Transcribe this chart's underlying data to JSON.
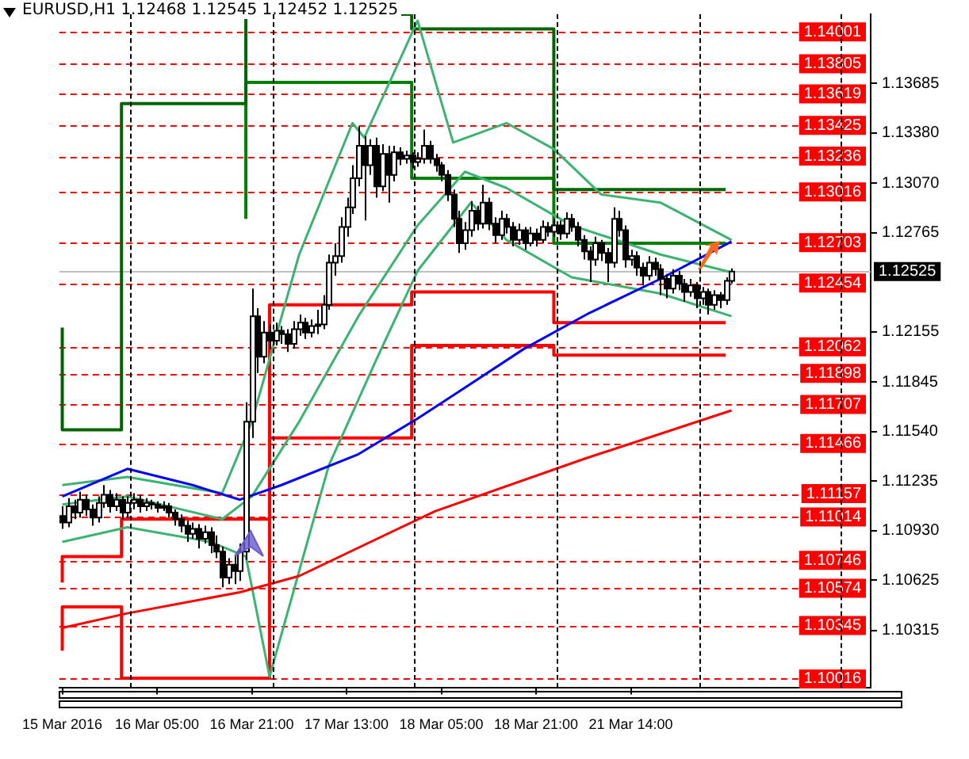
{
  "chart_data": {
    "type": "candlestick",
    "title": "EURUSD,H1 1.12468 1.12545 1.12452 1.12525",
    "categories": [
      "15 Mar 2016",
      null,
      null,
      null,
      null,
      null,
      null,
      null,
      null,
      null,
      null,
      null,
      null,
      null,
      null,
      null,
      "16 Mar 05:00",
      null,
      null,
      null,
      null,
      null,
      null,
      null,
      null,
      null,
      null,
      null,
      null,
      null,
      null,
      null,
      "16 Mar 21:00",
      null,
      null,
      null,
      null,
      null,
      null,
      null,
      null,
      null,
      null,
      null,
      null,
      null,
      null,
      null,
      "17 Mar 13:00",
      null,
      null,
      null,
      null,
      null,
      null,
      null,
      null,
      null,
      null,
      null,
      null,
      null,
      null,
      null,
      "18 Mar 05:00",
      null,
      null,
      null,
      null,
      null,
      null,
      null,
      null,
      null,
      null,
      null,
      null,
      null,
      null,
      null,
      "18 Mar 21:00",
      null,
      null,
      null,
      null,
      null,
      null,
      null,
      null,
      null,
      null,
      null,
      null,
      null,
      null,
      null,
      "21 Mar 14:00",
      null,
      null,
      null,
      null,
      null,
      null,
      null,
      null,
      null,
      null,
      null,
      null,
      null,
      null,
      null,
      null,
      null,
      null,
      null,
      null,
      null,
      null,
      null,
      null,
      null,
      null,
      null,
      null,
      null,
      null,
      null,
      null,
      null,
      null,
      null,
      null,
      null,
      null,
      null,
      null
    ],
    "ohlc": [
      [
        1.1102,
        1.1108,
        1.1094,
        1.1098
      ],
      [
        1.1098,
        1.1113,
        1.1095,
        1.1108
      ],
      [
        1.1108,
        1.1112,
        1.11,
        1.1104
      ],
      [
        1.1104,
        1.1117,
        1.1101,
        1.1112
      ],
      [
        1.1112,
        1.1115,
        1.1102,
        1.1106
      ],
      [
        1.1106,
        1.1109,
        1.1096,
        1.1101
      ],
      [
        1.1101,
        1.1114,
        1.1098,
        1.111
      ],
      [
        1.111,
        1.1121,
        1.1107,
        1.1115
      ],
      [
        1.1115,
        1.1118,
        1.1104,
        1.1108
      ],
      [
        1.1108,
        1.1116,
        1.1105,
        1.1112
      ],
      [
        1.1112,
        1.1114,
        1.11,
        1.1104
      ],
      [
        1.1104,
        1.1114,
        1.1101,
        1.111
      ],
      [
        1.111,
        1.1116,
        1.1106,
        1.1112
      ],
      [
        1.1112,
        1.1115,
        1.1104,
        1.1108
      ],
      [
        1.1108,
        1.1113,
        1.1105,
        1.111
      ],
      [
        1.111,
        1.1112,
        1.1106,
        1.1109
      ],
      [
        1.1109,
        1.1111,
        1.1104,
        1.1107
      ],
      [
        1.1107,
        1.1111,
        1.1105,
        1.1108
      ],
      [
        1.1108,
        1.111,
        1.1101,
        1.1104
      ],
      [
        1.1104,
        1.1106,
        1.1096,
        1.11
      ],
      [
        1.11,
        1.1103,
        1.1092,
        1.1096
      ],
      [
        1.1096,
        1.1099,
        1.1086,
        1.1091
      ],
      [
        1.1091,
        1.1098,
        1.1088,
        1.1094
      ],
      [
        1.1094,
        1.1097,
        1.1082,
        1.1088
      ],
      [
        1.1088,
        1.1096,
        1.1085,
        1.1092
      ],
      [
        1.1092,
        1.1095,
        1.1079,
        1.1084
      ],
      [
        1.1084,
        1.109,
        1.1076,
        1.108
      ],
      [
        1.108,
        1.1083,
        1.1058,
        1.1064
      ],
      [
        1.1064,
        1.1076,
        1.106,
        1.1072
      ],
      [
        1.1072,
        1.1078,
        1.106,
        1.1068
      ],
      [
        1.1068,
        1.1085,
        1.1062,
        1.108
      ],
      [
        1.108,
        1.1172,
        1.1075,
        1.116
      ],
      [
        1.116,
        1.1242,
        1.115,
        1.1225
      ],
      [
        1.1225,
        1.123,
        1.119,
        1.12
      ],
      [
        1.12,
        1.1222,
        1.1196,
        1.1215
      ],
      [
        1.1215,
        1.122,
        1.1205,
        1.121
      ],
      [
        1.121,
        1.1221,
        1.1207,
        1.1216
      ],
      [
        1.1216,
        1.1219,
        1.1208,
        1.1214
      ],
      [
        1.1214,
        1.1217,
        1.1203,
        1.1208
      ],
      [
        1.1208,
        1.1222,
        1.1205,
        1.1217
      ],
      [
        1.1217,
        1.1226,
        1.1213,
        1.1221
      ],
      [
        1.1221,
        1.1224,
        1.1211,
        1.1215
      ],
      [
        1.1215,
        1.1223,
        1.1212,
        1.1219
      ],
      [
        1.1219,
        1.1229,
        1.1214,
        1.122
      ],
      [
        1.122,
        1.1238,
        1.1217,
        1.1232
      ],
      [
        1.1232,
        1.1263,
        1.1229,
        1.1258
      ],
      [
        1.1258,
        1.127,
        1.125,
        1.1262
      ],
      [
        1.1262,
        1.1286,
        1.1258,
        1.128
      ],
      [
        1.128,
        1.1298,
        1.1274,
        1.1292
      ],
      [
        1.1292,
        1.1318,
        1.1288,
        1.131
      ],
      [
        1.131,
        1.1342,
        1.1305,
        1.133
      ],
      [
        1.133,
        1.1336,
        1.1284,
        1.1318
      ],
      [
        1.1318,
        1.1334,
        1.1312,
        1.133
      ],
      [
        1.133,
        1.1335,
        1.1298,
        1.1305
      ],
      [
        1.1305,
        1.1331,
        1.1302,
        1.1325
      ],
      [
        1.1325,
        1.133,
        1.1295,
        1.1312
      ],
      [
        1.1312,
        1.133,
        1.1308,
        1.1326
      ],
      [
        1.1326,
        1.1329,
        1.1318,
        1.1322
      ],
      [
        1.1322,
        1.1327,
        1.1319,
        1.1324
      ],
      [
        1.1324,
        1.1326,
        1.1316,
        1.132
      ],
      [
        1.132,
        1.1326,
        1.1317,
        1.1322
      ],
      [
        1.1322,
        1.134,
        1.1319,
        1.133
      ],
      [
        1.133,
        1.1333,
        1.1319,
        1.1322
      ],
      [
        1.1322,
        1.1325,
        1.1314,
        1.1318
      ],
      [
        1.1318,
        1.132,
        1.1308,
        1.1312
      ],
      [
        1.1312,
        1.1315,
        1.1296,
        1.13
      ],
      [
        1.13,
        1.1303,
        1.128,
        1.1285
      ],
      [
        1.1285,
        1.129,
        1.1264,
        1.127
      ],
      [
        1.127,
        1.1283,
        1.1266,
        1.1278
      ],
      [
        1.1278,
        1.1296,
        1.1274,
        1.129
      ],
      [
        1.129,
        1.1293,
        1.1278,
        1.1282
      ],
      [
        1.1282,
        1.1306,
        1.1279,
        1.1295
      ],
      [
        1.1295,
        1.1298,
        1.1278,
        1.1282
      ],
      [
        1.1282,
        1.1286,
        1.127,
        1.1275
      ],
      [
        1.1275,
        1.129,
        1.1272,
        1.1285
      ],
      [
        1.1285,
        1.1288,
        1.1276,
        1.128
      ],
      [
        1.128,
        1.1283,
        1.1268,
        1.1272
      ],
      [
        1.1272,
        1.1282,
        1.1269,
        1.1278
      ],
      [
        1.1278,
        1.128,
        1.1266,
        1.127
      ],
      [
        1.127,
        1.128,
        1.1268,
        1.1276
      ],
      [
        1.1276,
        1.1279,
        1.1268,
        1.1272
      ],
      [
        1.1272,
        1.1284,
        1.127,
        1.128
      ],
      [
        1.128,
        1.1283,
        1.1274,
        1.1277
      ],
      [
        1.1277,
        1.1285,
        1.1274,
        1.1281
      ],
      [
        1.1281,
        1.1284,
        1.1272,
        1.1276
      ],
      [
        1.1276,
        1.1289,
        1.1273,
        1.1285
      ],
      [
        1.1285,
        1.1288,
        1.1277,
        1.128
      ],
      [
        1.128,
        1.1283,
        1.1268,
        1.1272
      ],
      [
        1.1272,
        1.1275,
        1.126,
        1.1265
      ],
      [
        1.1265,
        1.1268,
        1.1246,
        1.126
      ],
      [
        1.126,
        1.1274,
        1.1256,
        1.127
      ],
      [
        1.127,
        1.1272,
        1.1259,
        1.1264
      ],
      [
        1.1264,
        1.1267,
        1.1246,
        1.1258
      ],
      [
        1.1258,
        1.1292,
        1.1255,
        1.1285
      ],
      [
        1.1285,
        1.129,
        1.1274,
        1.1278
      ],
      [
        1.1278,
        1.1281,
        1.1255,
        1.126
      ],
      [
        1.126,
        1.1266,
        1.1256,
        1.1262
      ],
      [
        1.1262,
        1.1265,
        1.125,
        1.1255
      ],
      [
        1.1255,
        1.1258,
        1.1244,
        1.125
      ],
      [
        1.125,
        1.1262,
        1.1247,
        1.1258
      ],
      [
        1.1258,
        1.1261,
        1.125,
        1.1254
      ],
      [
        1.1254,
        1.1257,
        1.1238,
        1.1248
      ],
      [
        1.1248,
        1.1251,
        1.1236,
        1.1242
      ],
      [
        1.1242,
        1.1254,
        1.1239,
        1.125
      ],
      [
        1.125,
        1.1253,
        1.1241,
        1.1245
      ],
      [
        1.1245,
        1.1248,
        1.1234,
        1.124
      ],
      [
        1.124,
        1.1248,
        1.1237,
        1.1244
      ],
      [
        1.1244,
        1.1246,
        1.123,
        1.1236
      ],
      [
        1.1236,
        1.1243,
        1.1232,
        1.124
      ],
      [
        1.124,
        1.1242,
        1.1226,
        1.1232
      ],
      [
        1.1232,
        1.1241,
        1.1229,
        1.1238
      ],
      [
        1.1238,
        1.124,
        1.123,
        1.1235
      ],
      [
        1.1235,
        1.1249,
        1.1232,
        1.12468
      ],
      [
        1.12468,
        1.12545,
        1.12452,
        1.12525
      ],
      null,
      null,
      null,
      null,
      null,
      null,
      null,
      null,
      null,
      null,
      null,
      null,
      null,
      null,
      null,
      null,
      null,
      null,
      null,
      null,
      null,
      null,
      null
    ],
    "series": [
      {
        "type": "line",
        "color": "#0000ff",
        "values": [
          1.1114,
          null,
          null,
          null,
          null,
          null,
          null,
          null,
          null,
          null,
          null,
          1.1131,
          null,
          null,
          null,
          null,
          null,
          null,
          null,
          null,
          null,
          null,
          1.1121,
          null,
          null,
          null,
          null,
          null,
          null,
          null,
          1.1112,
          null,
          null,
          null,
          null,
          null,
          null,
          1.1121,
          null,
          null,
          null,
          null,
          null,
          null,
          null,
          null,
          null,
          null,
          null,
          null,
          1.114,
          null,
          null,
          null,
          null,
          null,
          null,
          null,
          null,
          null,
          1.1162,
          null,
          null,
          null,
          null,
          null,
          null,
          null,
          1.1181,
          null,
          null,
          null,
          null,
          null,
          null,
          null,
          null,
          null,
          1.1205,
          null,
          null,
          null,
          null,
          null,
          null,
          null,
          null,
          null,
          null,
          1.1227,
          null,
          null,
          null,
          null,
          null,
          null,
          null,
          null,
          null,
          null,
          null,
          1.1248,
          null,
          null,
          null,
          null,
          null,
          null,
          null,
          null,
          null,
          null,
          null,
          1.1271,
          null,
          null,
          null,
          null,
          null,
          null,
          null,
          null,
          null,
          null,
          null,
          null,
          null,
          null,
          null,
          null,
          null,
          null,
          null,
          null,
          null,
          null,
          null
        ]
      },
      {
        "type": "line",
        "color": "#ff0000",
        "values": [
          1.1033,
          null,
          null,
          null,
          null,
          null,
          null,
          null,
          null,
          null,
          null,
          1.1042,
          null,
          null,
          null,
          null,
          null,
          null,
          null,
          null,
          null,
          null,
          null,
          null,
          null,
          null,
          null,
          null,
          null,
          null,
          1.1055,
          null,
          null,
          null,
          null,
          null,
          null,
          null,
          null,
          null,
          1.1065,
          null,
          null,
          null,
          null,
          null,
          null,
          null,
          null,
          null,
          null,
          null,
          null,
          null,
          null,
          null,
          null,
          null,
          null,
          null,
          null,
          null,
          null,
          1.1105,
          null,
          null,
          null,
          null,
          null,
          null,
          null,
          null,
          null,
          null,
          null,
          null,
          null,
          null,
          null,
          null,
          null,
          null,
          null,
          null,
          null,
          null,
          null,
          null,
          1.1137,
          null,
          null,
          null,
          null,
          null,
          null,
          null,
          null,
          null,
          null,
          null,
          null,
          null,
          null,
          null,
          null,
          null,
          null,
          null,
          null,
          null,
          null,
          null,
          null,
          1.1167,
          null,
          null,
          null,
          null,
          null,
          null,
          null,
          null,
          null,
          null,
          null,
          null,
          null,
          null,
          null,
          null,
          null,
          null,
          null,
          null,
          null,
          null,
          null
        ]
      },
      {
        "type": "line",
        "color": "#3cb371",
        "values": [
          1.1121,
          null,
          null,
          null,
          null,
          null,
          null,
          null,
          null,
          null,
          null,
          1.1126,
          null,
          null,
          null,
          null,
          null,
          null,
          null,
          null,
          null,
          null,
          null,
          null,
          null,
          null,
          null,
          1.1116,
          null,
          null,
          null,
          null,
          1.116,
          null,
          null,
          null,
          null,
          null,
          null,
          null,
          1.1263,
          null,
          null,
          null,
          null,
          null,
          null,
          null,
          null,
          1.1344,
          null,
          1.1335,
          null,
          null,
          null,
          null,
          null,
          null,
          null,
          null,
          1.1407,
          null,
          null,
          null,
          null,
          null,
          1.1332,
          null,
          null,
          null,
          null,
          null,
          null,
          null,
          null,
          1.1344,
          null,
          null,
          null,
          null,
          null,
          null,
          null,
          1.1328,
          null,
          null,
          null,
          null,
          null,
          null,
          null,
          1.13,
          null,
          null,
          null,
          null,
          null,
          null,
          null,
          null,
          null,
          1.1295,
          null,
          null,
          null,
          null,
          null,
          null,
          null,
          null,
          null,
          null,
          null,
          1.1272,
          null,
          null,
          null,
          null,
          null,
          null,
          null,
          null,
          null,
          null,
          null,
          null,
          null,
          null,
          null,
          null,
          null,
          null,
          null,
          null,
          null,
          null,
          null
        ]
      },
      {
        "type": "line",
        "color": "#3cb371",
        "values": [
          1.1109,
          null,
          null,
          null,
          null,
          null,
          null,
          null,
          null,
          null,
          null,
          1.1114,
          null,
          null,
          null,
          null,
          null,
          null,
          null,
          null,
          null,
          null,
          null,
          null,
          null,
          null,
          null,
          1.11,
          null,
          null,
          null,
          null,
          1.1114,
          null,
          null,
          null,
          null,
          null,
          null,
          null,
          1.116,
          null,
          null,
          null,
          null,
          null,
          null,
          null,
          null,
          null,
          1.1225,
          null,
          null,
          null,
          null,
          null,
          null,
          null,
          null,
          null,
          1.1281,
          null,
          null,
          null,
          null,
          null,
          null,
          null,
          1.1314,
          null,
          null,
          null,
          null,
          null,
          null,
          1.1304,
          null,
          null,
          null,
          null,
          null,
          null,
          null,
          null,
          null,
          null,
          1.1281,
          null,
          null,
          null,
          null,
          null,
          null,
          null,
          null,
          null,
          null,
          null,
          null,
          null,
          null,
          1.1263,
          null,
          null,
          null,
          null,
          null,
          null,
          null,
          null,
          null,
          null,
          null,
          1.1252,
          null,
          null,
          null,
          null,
          null,
          null,
          null,
          null,
          null,
          null,
          null,
          null,
          null,
          null,
          null,
          null,
          null,
          null,
          null,
          null,
          null,
          null,
          null
        ]
      },
      {
        "type": "line",
        "color": "#3cb371",
        "values": [
          1.1086,
          null,
          null,
          null,
          null,
          null,
          null,
          null,
          null,
          null,
          null,
          1.1095,
          null,
          null,
          null,
          null,
          null,
          null,
          null,
          null,
          null,
          null,
          null,
          null,
          null,
          1.1086,
          null,
          null,
          null,
          null,
          null,
          1.1077,
          null,
          null,
          null,
          1.1003,
          null,
          null,
          null,
          null,
          null,
          null,
          null,
          null,
          null,
          1.1133,
          null,
          null,
          null,
          null,
          null,
          null,
          null,
          1.1198,
          null,
          null,
          null,
          null,
          null,
          null,
          1.1253,
          null,
          null,
          null,
          null,
          null,
          null,
          null,
          null,
          1.1295,
          null,
          null,
          null,
          null,
          null,
          1.1272,
          null,
          null,
          null,
          null,
          null,
          null,
          null,
          null,
          null,
          null,
          1.1249,
          null,
          null,
          null,
          null,
          null,
          null,
          null,
          null,
          null,
          null,
          null,
          null,
          null,
          null,
          1.1239,
          null,
          null,
          null,
          null,
          null,
          null,
          null,
          null,
          null,
          null,
          null,
          1.1225,
          null,
          null,
          null,
          null,
          null,
          null,
          null,
          null,
          null,
          null,
          null,
          null,
          null,
          null,
          null,
          null,
          null,
          null,
          null,
          null,
          null,
          null,
          null
        ]
      },
      {
        "type": "step",
        "color": "#006400",
        "values": [
          1.1218,
          null,
          null,
          null,
          null,
          null,
          null,
          null,
          null,
          null,
          1.1155,
          null,
          null,
          null,
          null,
          null,
          null,
          null,
          null,
          null,
          null,
          null,
          null,
          null,
          null,
          null,
          null,
          null,
          null,
          null,
          null,
          1.1356,
          null,
          null,
          null,
          null,
          null,
          null,
          null,
          null,
          null,
          null,
          null,
          null,
          null,
          null,
          null,
          null,
          null,
          null,
          null,
          null,
          null,
          null,
          null,
          null,
          null,
          null,
          null,
          1.1411,
          null,
          null,
          null,
          null,
          null,
          null,
          null,
          null,
          null,
          null,
          null,
          null,
          null,
          null,
          null,
          null,
          null,
          null,
          null,
          null,
          null,
          null,
          null,
          1.1402,
          null,
          null,
          null,
          null,
          null,
          null,
          null,
          null,
          null,
          null,
          null,
          null,
          null,
          null,
          null,
          null,
          null,
          null,
          null,
          null,
          null,
          null,
          null,
          1.1303,
          null,
          null,
          null,
          null,
          1.1303,
          null,
          null,
          null,
          null,
          null,
          null,
          null,
          null,
          null,
          null,
          null,
          null,
          null,
          null,
          null,
          null,
          null,
          null,
          null,
          null,
          null,
          null,
          null,
          null
        ]
      },
      {
        "type": "step",
        "color": "#008000",
        "values": [
          null,
          null,
          null,
          null,
          null,
          null,
          null,
          null,
          null,
          null,
          null,
          null,
          null,
          null,
          null,
          null,
          null,
          null,
          null,
          null,
          null,
          null,
          null,
          null,
          null,
          null,
          null,
          null,
          null,
          null,
          null,
          1.1285,
          null,
          null,
          null,
          null,
          null,
          null,
          null,
          null,
          null,
          null,
          null,
          null,
          null,
          null,
          null,
          null,
          null,
          null,
          null,
          null,
          null,
          null,
          null,
          null,
          null,
          null,
          null,
          1.1369,
          null,
          null,
          null,
          null,
          null,
          null,
          null,
          null,
          null,
          null,
          null,
          null,
          null,
          null,
          null,
          null,
          null,
          null,
          null,
          null,
          null,
          null,
          null,
          1.131,
          null,
          null,
          null,
          null,
          null,
          null,
          null,
          null,
          null,
          null,
          null,
          null,
          null,
          null,
          null,
          null,
          null,
          null,
          null,
          null,
          null,
          null,
          null,
          1.127,
          null,
          null,
          null,
          null,
          1.127,
          null,
          null,
          null,
          null,
          null,
          null,
          null,
          null,
          null,
          null,
          null,
          null,
          null,
          null,
          null,
          null,
          null,
          null,
          null,
          null,
          null,
          null,
          null,
          null
        ]
      },
      {
        "type": "step",
        "color": "#ff0000",
        "values": [
          1.1019,
          null,
          null,
          null,
          null,
          null,
          null,
          null,
          null,
          null,
          1.1046,
          null,
          null,
          null,
          null,
          null,
          null,
          null,
          null,
          null,
          null,
          null,
          null,
          null,
          null,
          null,
          null,
          null,
          null,
          null,
          null,
          null,
          null,
          null,
          null,
          1.1002,
          null,
          null,
          null,
          null,
          null,
          null,
          null,
          null,
          null,
          null,
          null,
          null,
          null,
          null,
          null,
          null,
          null,
          null,
          null,
          null,
          null,
          null,
          null,
          1.115,
          null,
          null,
          null,
          null,
          null,
          null,
          null,
          null,
          null,
          null,
          null,
          null,
          null,
          null,
          null,
          null,
          null,
          null,
          null,
          null,
          null,
          null,
          null,
          1.1207,
          null,
          null,
          null,
          null,
          null,
          null,
          null,
          null,
          null,
          null,
          null,
          null,
          null,
          null,
          null,
          null,
          null,
          null,
          null,
          null,
          null,
          null,
          null,
          1.1201,
          null,
          null,
          null,
          null,
          1.1201,
          null,
          null,
          null,
          null,
          null,
          null,
          null,
          null,
          null,
          null,
          null,
          null,
          null,
          null,
          null,
          null,
          null,
          null,
          null,
          null,
          null,
          null,
          null,
          null
        ]
      },
      {
        "type": "step",
        "color": "#ff0000",
        "values": [
          1.1061,
          null,
          null,
          null,
          null,
          null,
          null,
          null,
          null,
          null,
          1.1077,
          null,
          null,
          null,
          null,
          null,
          null,
          null,
          null,
          null,
          null,
          null,
          null,
          null,
          null,
          null,
          null,
          null,
          null,
          null,
          null,
          null,
          null,
          null,
          null,
          1.11,
          null,
          null,
          null,
          null,
          null,
          null,
          null,
          null,
          null,
          null,
          null,
          null,
          null,
          null,
          null,
          null,
          null,
          null,
          null,
          null,
          null,
          null,
          null,
          1.1232,
          null,
          null,
          null,
          null,
          null,
          null,
          null,
          null,
          null,
          null,
          null,
          null,
          null,
          null,
          null,
          null,
          null,
          null,
          null,
          null,
          null,
          null,
          null,
          1.124,
          null,
          null,
          null,
          null,
          null,
          null,
          null,
          null,
          null,
          null,
          null,
          null,
          null,
          null,
          null,
          null,
          null,
          null,
          null,
          null,
          null,
          null,
          null,
          1.1221,
          null,
          null,
          null,
          null,
          1.1221,
          null,
          null,
          null,
          null,
          null,
          null,
          null,
          null,
          null,
          null,
          null,
          null,
          null,
          null,
          null,
          null,
          null,
          null,
          null,
          null,
          null,
          null,
          null,
          null
        ]
      }
    ],
    "ylim": [
      1.0996,
      1.1411
    ],
    "yticks": [
      {
        "value": 1.10315,
        "label": "1.10315"
      },
      {
        "value": 1.10625,
        "label": "1.10625"
      },
      {
        "value": 1.1093,
        "label": "1.10930"
      },
      {
        "value": 1.11235,
        "label": "1.11235"
      },
      {
        "value": 1.1154,
        "label": "1.11540"
      },
      {
        "value": 1.11845,
        "label": "1.11845"
      },
      {
        "value": 1.12155,
        "label": "1.12155"
      },
      {
        "value": 1.12765,
        "label": "1.12765"
      },
      {
        "value": 1.1307,
        "label": "1.13070"
      },
      {
        "value": 1.1338,
        "label": "1.13380"
      },
      {
        "value": 1.13685,
        "label": "1.13685"
      }
    ],
    "ref_lines": [
      {
        "axis": "y",
        "value": 1.14001,
        "label": "1.14001",
        "color": "#ff0000",
        "line_style": "dashed"
      },
      {
        "axis": "y",
        "value": 1.13805,
        "label": "1.13805",
        "color": "#ff0000",
        "line_style": "dashed"
      },
      {
        "axis": "y",
        "value": 1.13619,
        "label": "1.13619",
        "color": "#ff0000",
        "line_style": "dashed"
      },
      {
        "axis": "y",
        "value": 1.13425,
        "label": "1.13425",
        "color": "#ff0000",
        "line_style": "dashed"
      },
      {
        "axis": "y",
        "value": 1.13236,
        "label": "1.13236",
        "color": "#ff0000",
        "line_style": "dashed"
      },
      {
        "axis": "y",
        "value": 1.13016,
        "label": "1.13016",
        "color": "#ff0000",
        "line_style": "dashed"
      },
      {
        "axis": "y",
        "value": 1.12703,
        "label": "1.12703",
        "color": "#ff0000",
        "line_style": "dashed"
      },
      {
        "axis": "y",
        "value": 1.12454,
        "label": "1.12454",
        "color": "#ff0000",
        "line_style": "dashed"
      },
      {
        "axis": "y",
        "value": 1.12062,
        "label": "1.12062",
        "color": "#ff0000",
        "line_style": "dashed"
      },
      {
        "axis": "y",
        "value": 1.11898,
        "label": "1.11898",
        "color": "#ff0000",
        "line_style": "dashed"
      },
      {
        "axis": "y",
        "value": 1.11707,
        "label": "1.11707",
        "color": "#ff0000",
        "line_style": "dashed"
      },
      {
        "axis": "y",
        "value": 1.11466,
        "label": "1.11466",
        "color": "#ff0000",
        "line_style": "dashed"
      },
      {
        "axis": "y",
        "value": 1.11157,
        "label": "1.11157",
        "color": "#ff0000",
        "line_style": "dashed"
      },
      {
        "axis": "y",
        "value": 1.11014,
        "label": "1.11014",
        "color": "#ff0000",
        "line_style": "dashed"
      },
      {
        "axis": "y",
        "value": 1.10746,
        "label": "1.10746",
        "color": "#ff0000",
        "line_style": "dashed"
      },
      {
        "axis": "y",
        "value": 1.10574,
        "label": "1.10574",
        "color": "#ff0000",
        "line_style": "dashed"
      },
      {
        "axis": "y",
        "value": 1.10345,
        "label": "1.10345",
        "color": "#ff0000",
        "line_style": "dashed"
      },
      {
        "axis": "y",
        "value": 1.10016,
        "label": "1.10016",
        "color": "#ff0000",
        "line_style": "dashed"
      },
      {
        "axis": "y",
        "value": 1.12525,
        "label": "1.12525",
        "color": "#c0c0c0",
        "line_style": "solid"
      }
    ]
  }
}
